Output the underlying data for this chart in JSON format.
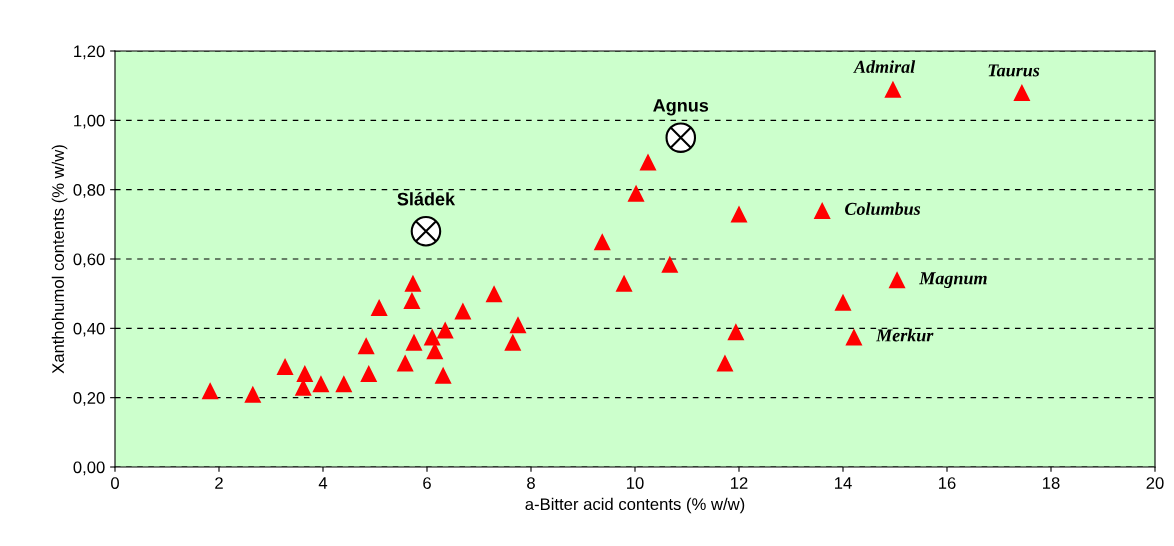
{
  "chart_data": {
    "type": "scatter",
    "xlabel": "a-Bitter acid contents (% w/w)",
    "ylabel": "Xanthohumol contents (% w/w)",
    "xlim": [
      0,
      20
    ],
    "xticks": [
      0,
      2,
      4,
      6,
      8,
      10,
      12,
      14,
      16,
      18,
      20
    ],
    "ylim": [
      0,
      1.2
    ],
    "yticks": [
      {
        "value": 0,
        "label": "0,00"
      },
      {
        "value": 0.2,
        "label": "0,20"
      },
      {
        "value": 0.4,
        "label": "0,40"
      },
      {
        "value": 0.6,
        "label": "0,60"
      },
      {
        "value": 0.8,
        "label": "0,80"
      },
      {
        "value": 1.0,
        "label": "1,00"
      },
      {
        "value": 1.2,
        "label": "1,20"
      }
    ],
    "grid": "y",
    "line_style": "dashed",
    "series": [
      {
        "color": "#ff0000",
        "marker": "triangle",
        "x": [
          1.83,
          2.65,
          3.27,
          3.65,
          3.62,
          3.96,
          4.4,
          4.83,
          4.88,
          5.08,
          5.58,
          5.73,
          5.71,
          5.75,
          6.1,
          6.15,
          6.31,
          6.35,
          6.69,
          7.29,
          7.65,
          7.75,
          9.37,
          9.79,
          10.02,
          10.25,
          10.67,
          11.73,
          11.94,
          12.0,
          13.6,
          14.0,
          14.21,
          14.96,
          15.04,
          17.44
        ],
        "values": [
          0.22,
          0.21,
          0.29,
          0.27,
          0.23,
          0.24,
          0.24,
          0.35,
          0.27,
          0.46,
          0.3,
          0.53,
          0.48,
          0.36,
          0.375,
          0.335,
          0.265,
          0.395,
          0.45,
          0.5,
          0.36,
          0.41,
          0.65,
          0.53,
          0.79,
          0.88,
          0.585,
          0.3,
          0.39,
          0.73,
          0.74,
          0.475,
          0.375,
          1.09,
          0.54,
          1.08
        ]
      },
      {
        "color": "#ffffff",
        "marker": "circle",
        "x": [
          5.98,
          10.88
        ],
        "values": [
          0.68,
          0.95
        ]
      }
    ],
    "annotations": [
      {
        "text": "Sládek",
        "x": 5.98,
        "y": 0.68
      },
      {
        "text": "Agnus",
        "x": 10.88,
        "y": 0.95
      },
      {
        "text": "Admiral",
        "x": 14.96,
        "y": 1.09
      },
      {
        "text": "Taurus",
        "x": 17.44,
        "y": 1.08
      },
      {
        "text": "Columbus",
        "x": 13.6,
        "y": 0.74
      },
      {
        "text": "Magnum",
        "x": 15.04,
        "y": 0.54
      },
      {
        "text": "Merkur",
        "x": 14.21,
        "y": 0.375
      }
    ]
  }
}
